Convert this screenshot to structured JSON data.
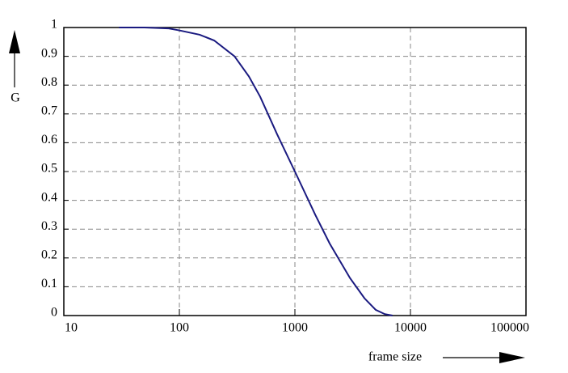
{
  "chart_data": {
    "type": "line",
    "x_label": "frame size",
    "y_label": "G",
    "x": [
      30,
      50,
      80,
      100,
      150,
      200,
      300,
      400,
      500,
      700,
      1000,
      1500,
      2000,
      3000,
      4000,
      5000,
      6000,
      7000
    ],
    "values": [
      1.0,
      1.0,
      0.997,
      0.99,
      0.975,
      0.955,
      0.9,
      0.83,
      0.76,
      0.63,
      0.5,
      0.35,
      0.25,
      0.13,
      0.06,
      0.02,
      0.005,
      0
    ],
    "color": "#1a1a80",
    "xscale": "log",
    "grid": true,
    "xlim": [
      10,
      100000
    ],
    "xticks": [
      10,
      100,
      1000,
      10000,
      100000
    ],
    "ylim": [
      0,
      1
    ],
    "yticks": [
      0,
      0.1,
      0.2,
      0.3,
      0.4,
      0.5,
      0.6,
      0.7,
      0.8,
      0.9,
      1
    ]
  }
}
